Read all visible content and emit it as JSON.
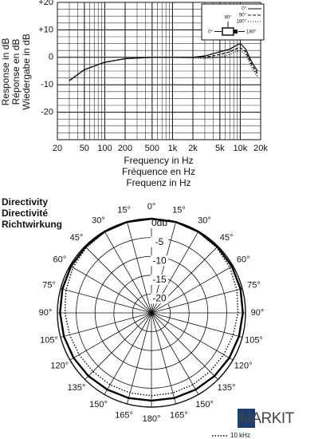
{
  "chart_data": [
    {
      "type": "line",
      "y_label": [
        "Response in dB",
        "Réponse en dB",
        "Wiedergabe in dB"
      ],
      "x_label": [
        "Frequency in Hz",
        "Fréquence en Hz",
        "Frequenz in Hz"
      ],
      "log_x": true,
      "xlim": [
        20,
        20000
      ],
      "xticks": [
        20,
        50,
        100,
        200,
        500,
        {
          "value": 1000,
          "label": "1k"
        },
        {
          "value": 2000,
          "label": "2k"
        },
        {
          "value": 5000,
          "label": "5k"
        },
        {
          "value": 10000,
          "label": "10k"
        },
        {
          "value": 20000,
          "label": "20k"
        }
      ],
      "ylim": [
        -30,
        20
      ],
      "yticks": [
        {
          "value": 20,
          "label": "+20"
        },
        {
          "value": 10,
          "label": "+10"
        },
        0,
        -10,
        -20
      ],
      "grid": true,
      "legend": "top-right",
      "icon_labels": [
        "90°",
        "0°",
        "180°"
      ],
      "x": [
        30,
        50,
        100,
        200,
        500,
        1000,
        2000,
        3000,
        5000,
        7000,
        9000,
        10000,
        12000,
        15000,
        18000
      ],
      "series": [
        {
          "name": "0°",
          "color": "#111111",
          "dash": "",
          "values": [
            -8.5,
            -4.5,
            -1.8,
            -0.5,
            0,
            0,
            0,
            0.5,
            2,
            3,
            4.5,
            5,
            3,
            -2,
            -5
          ]
        },
        {
          "name": "90°",
          "color": "#111111",
          "dash": "4 2",
          "values": [
            -8.5,
            -4.5,
            -1.8,
            -0.5,
            0,
            0,
            0,
            0,
            1,
            2,
            3.2,
            3.5,
            2,
            -3,
            -6
          ]
        },
        {
          "name": "180°",
          "color": "#111111",
          "dash": "1 2",
          "values": [
            -8.5,
            -4.5,
            -1.8,
            -0.5,
            0,
            0,
            -0.2,
            -0.5,
            0,
            1,
            2.2,
            2.5,
            1,
            -4,
            -7
          ]
        }
      ]
    },
    {
      "type": "polar",
      "title": [
        "Directivity",
        "Directivité",
        "Richtwirkung"
      ],
      "rlim": [
        -25,
        0
      ],
      "rticks": [
        {
          "value": 0,
          "label": "0db"
        },
        -5,
        -10,
        -15,
        -20
      ],
      "angle_ticks": [
        {
          "value": 0,
          "label": "0°"
        },
        {
          "value": 15,
          "label": "15°"
        },
        {
          "value": 30,
          "label": "30°"
        },
        {
          "value": 45,
          "label": "45°"
        },
        {
          "value": 60,
          "label": "60°"
        },
        {
          "value": 75,
          "label": "75°"
        },
        {
          "value": 90,
          "label": "90°"
        },
        {
          "value": 105,
          "label": "105°"
        },
        {
          "value": 120,
          "label": "120°"
        },
        {
          "value": 135,
          "label": "135°"
        },
        {
          "value": 150,
          "label": "150°"
        },
        {
          "value": 165,
          "label": "165°"
        },
        {
          "value": 180,
          "label": "180°"
        }
      ],
      "theta": [
        0,
        15,
        30,
        45,
        60,
        75,
        90,
        105,
        120,
        135,
        150,
        165,
        180,
        195,
        210,
        225,
        240,
        255,
        270,
        285,
        300,
        315,
        330,
        345
      ],
      "series": [
        {
          "color": "#000000",
          "dash": "",
          "width": 2.4,
          "values": [
            0,
            0,
            -0.1,
            -0.2,
            -0.3,
            -0.5,
            -0.7,
            -0.9,
            -1.1,
            -1.3,
            -1.5,
            -1.6,
            -1.7,
            -1.6,
            -1.5,
            -1.3,
            -1.1,
            -0.9,
            -0.7,
            -0.5,
            -0.3,
            -0.2,
            -0.1,
            0
          ]
        },
        {
          "name": "10 kHz",
          "color": "#000000",
          "dash": "1.5 2",
          "width": 1.4,
          "values": [
            0,
            0,
            -0.2,
            -0.5,
            -0.9,
            -1.5,
            -2,
            -2.5,
            -2.8,
            -3,
            -3,
            -3,
            -3,
            -3,
            -3,
            -3,
            -2.8,
            -2.5,
            -2,
            -1.5,
            -0.9,
            -0.5,
            -0.2,
            0
          ]
        }
      ],
      "watermark": "MARKIT"
    }
  ]
}
